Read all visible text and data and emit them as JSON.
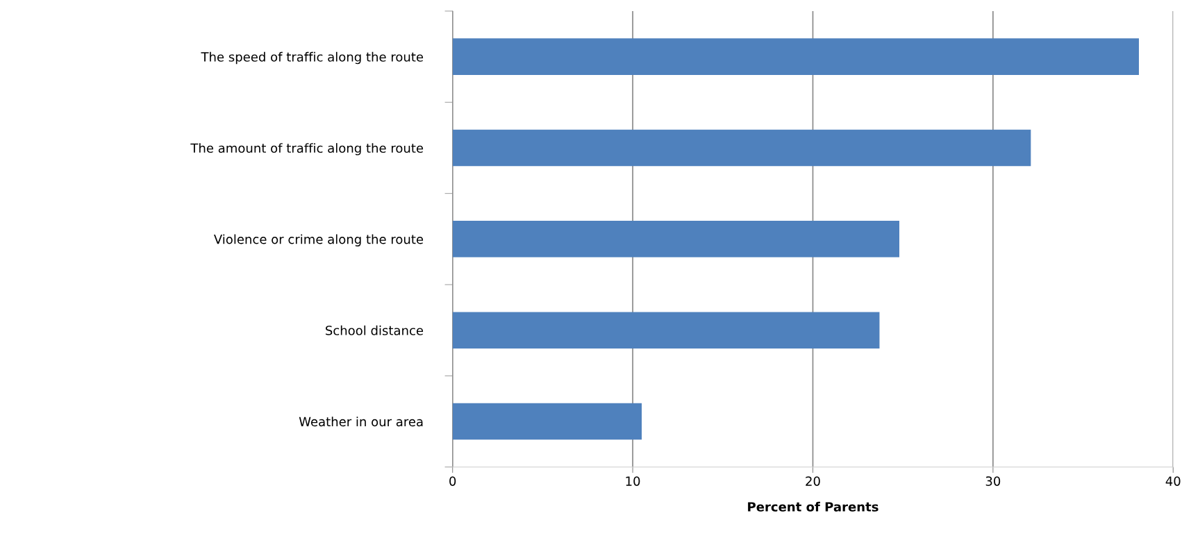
{
  "chart_data": {
    "type": "bar",
    "orientation": "horizontal",
    "xlabel": "Percent of Parents",
    "categories": [
      "The speed of traffic along the route",
      "The amount of traffic along the route",
      "Violence or crime along the route",
      "School distance",
      "Weather in our area"
    ],
    "values": [
      38.1,
      32.1,
      24.8,
      23.7,
      10.5
    ],
    "color": "#4f81bd",
    "xlim": [
      0,
      40
    ],
    "xticks": [
      0,
      10,
      20,
      30,
      40
    ],
    "grid": "x"
  }
}
